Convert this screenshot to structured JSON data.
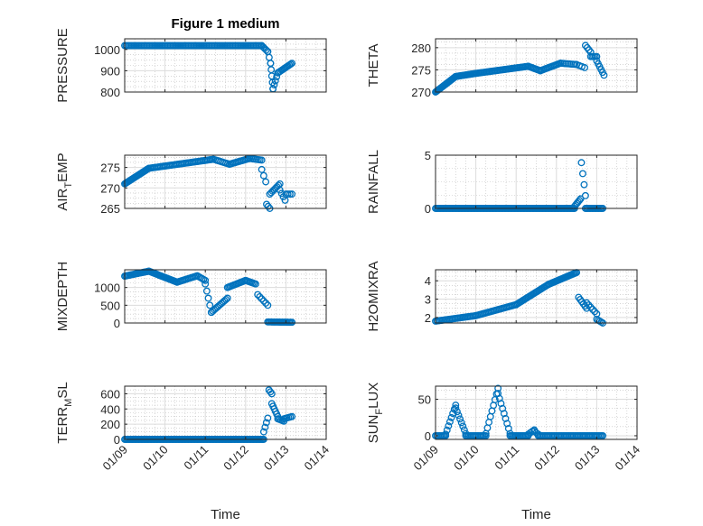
{
  "colors": {
    "marker": "#0072bd",
    "axis": "#262626"
  },
  "chart_data": [
    {
      "type": "scatter",
      "title": "Figure 1 medium",
      "ylabel": "PRESSURE",
      "ylim": [
        800,
        1050
      ],
      "yticks": [
        800,
        900,
        1000
      ],
      "xlim": [
        0,
        5
      ],
      "xticks": [
        0,
        1,
        2,
        3,
        4,
        5
      ],
      "xticklabels": [
        "01/09",
        "01/10",
        "01/11",
        "01/12",
        "01/13",
        "01/14"
      ],
      "show_xticklabels": false,
      "xlabel": "",
      "series": [
        {
          "segments": [
            {
              "x0": 0.0,
              "x1": 3.4,
              "y0": 1018,
              "y1": 1018,
              "n": 100
            },
            {
              "x0": 3.4,
              "x1": 3.55,
              "y0": 1018,
              "y1": 990,
              "n": 5
            },
            {
              "x0": 3.55,
              "x1": 3.62,
              "y0": 990,
              "y1": 935,
              "n": 3
            },
            {
              "x0": 3.62,
              "x1": 3.68,
              "y0": 935,
              "y1": 815,
              "n": 5
            },
            {
              "x0": 3.68,
              "x1": 3.8,
              "y0": 815,
              "y1": 890,
              "n": 5
            },
            {
              "x0": 3.8,
              "x1": 4.15,
              "y0": 890,
              "y1": 935,
              "n": 12
            }
          ]
        }
      ]
    },
    {
      "type": "scatter",
      "title": "",
      "ylabel": "THETA",
      "ylim": [
        270,
        282
      ],
      "yticks": [
        270,
        275,
        280
      ],
      "xlim": [
        0,
        5
      ],
      "xticks": [
        0,
        1,
        2,
        3,
        4,
        5
      ],
      "xticklabels": [
        "01/09",
        "01/10",
        "01/11",
        "01/12",
        "01/13",
        "01/14"
      ],
      "show_xticklabels": false,
      "xlabel": "",
      "series": [
        {
          "segments": [
            {
              "x0": 0.0,
              "x1": 0.5,
              "y0": 270,
              "y1": 273.5,
              "n": 25
            },
            {
              "x0": 0.5,
              "x1": 1.0,
              "y0": 273.5,
              "y1": 274.2,
              "n": 20
            },
            {
              "x0": 1.0,
              "x1": 2.3,
              "y0": 274.2,
              "y1": 275.8,
              "n": 40
            },
            {
              "x0": 2.3,
              "x1": 2.6,
              "y0": 275.8,
              "y1": 274.8,
              "n": 10
            },
            {
              "x0": 2.6,
              "x1": 3.1,
              "y0": 274.8,
              "y1": 276.5,
              "n": 15
            },
            {
              "x0": 3.1,
              "x1": 3.5,
              "y0": 276.5,
              "y1": 276.2,
              "n": 10
            },
            {
              "x0": 3.5,
              "x1": 3.7,
              "y0": 276.2,
              "y1": 275.5,
              "n": 4
            },
            {
              "x0": 3.72,
              "x1": 3.85,
              "y0": 280.5,
              "y1": 279,
              "n": 4
            },
            {
              "x0": 3.85,
              "x1": 4.0,
              "y0": 278,
              "y1": 278,
              "n": 5
            },
            {
              "x0": 4.0,
              "x1": 4.18,
              "y0": 277,
              "y1": 273.8,
              "n": 6
            }
          ]
        }
      ]
    },
    {
      "type": "scatter",
      "title": "",
      "ylabel": "AIR_TEMP",
      "ylim": [
        265,
        278
      ],
      "yticks": [
        265,
        270,
        275
      ],
      "xlim": [
        0,
        5
      ],
      "xticks": [
        0,
        1,
        2,
        3,
        4,
        5
      ],
      "xticklabels": [
        "01/09",
        "01/10",
        "01/11",
        "01/12",
        "01/13",
        "01/14"
      ],
      "show_xticklabels": false,
      "xlabel": "",
      "series": [
        {
          "segments": [
            {
              "x0": 0.0,
              "x1": 0.6,
              "y0": 271,
              "y1": 274.8,
              "n": 25
            },
            {
              "x0": 0.6,
              "x1": 2.2,
              "y0": 274.8,
              "y1": 277,
              "n": 45
            },
            {
              "x0": 2.2,
              "x1": 2.6,
              "y0": 277,
              "y1": 275.8,
              "n": 10
            },
            {
              "x0": 2.6,
              "x1": 3.1,
              "y0": 275.8,
              "y1": 277.2,
              "n": 15
            },
            {
              "x0": 3.1,
              "x1": 3.4,
              "y0": 277.2,
              "y1": 276.8,
              "n": 8
            },
            {
              "x0": 3.4,
              "x1": 3.5,
              "y0": 274.5,
              "y1": 271.5,
              "n": 3
            },
            {
              "x0": 3.52,
              "x1": 3.6,
              "y0": 266,
              "y1": 265,
              "n": 3
            },
            {
              "x0": 3.6,
              "x1": 3.85,
              "y0": 268.5,
              "y1": 271,
              "n": 8
            },
            {
              "x0": 3.85,
              "x1": 3.98,
              "y0": 269.5,
              "y1": 267,
              "n": 4
            },
            {
              "x0": 4.0,
              "x1": 4.15,
              "y0": 268.5,
              "y1": 268.5,
              "n": 4
            }
          ]
        }
      ]
    },
    {
      "type": "scatter",
      "title": "",
      "ylabel": "RAINFALL",
      "ylim": [
        0,
        5
      ],
      "yticks": [
        0,
        5
      ],
      "xlim": [
        0,
        5
      ],
      "xticks": [
        0,
        1,
        2,
        3,
        4,
        5
      ],
      "xticklabels": [
        "01/09",
        "01/10",
        "01/11",
        "01/12",
        "01/13",
        "01/14"
      ],
      "show_xticklabels": false,
      "xlabel": "",
      "series": [
        {
          "segments": [
            {
              "x0": 0.0,
              "x1": 3.45,
              "y0": 0,
              "y1": 0,
              "n": 110
            },
            {
              "x0": 3.45,
              "x1": 3.6,
              "y0": 0.2,
              "y1": 0.9,
              "n": 6
            },
            {
              "x0": 3.62,
              "x1": 3.72,
              "y0": 4.3,
              "y1": 1.2,
              "n": 4
            },
            {
              "x0": 3.72,
              "x1": 4.15,
              "y0": 0,
              "y1": 0,
              "n": 14
            }
          ]
        }
      ]
    },
    {
      "type": "scatter",
      "title": "",
      "ylabel": "MIXDEPTH",
      "ylim": [
        0,
        1500
      ],
      "yticks": [
        0,
        500,
        1000
      ],
      "xlim": [
        0,
        5
      ],
      "xticks": [
        0,
        1,
        2,
        3,
        4,
        5
      ],
      "xticklabels": [
        "01/09",
        "01/10",
        "01/11",
        "01/12",
        "01/13",
        "01/14"
      ],
      "show_xticklabels": false,
      "xlabel": "",
      "series": [
        {
          "segments": [
            {
              "x0": 0.0,
              "x1": 0.6,
              "y0": 1320,
              "y1": 1460,
              "n": 20
            },
            {
              "x0": 0.6,
              "x1": 1.3,
              "y0": 1460,
              "y1": 1150,
              "n": 25
            },
            {
              "x0": 1.3,
              "x1": 1.8,
              "y0": 1150,
              "y1": 1330,
              "n": 15
            },
            {
              "x0": 1.8,
              "x1": 2.0,
              "y0": 1330,
              "y1": 1200,
              "n": 6
            },
            {
              "x0": 2.0,
              "x1": 2.15,
              "y0": 1100,
              "y1": 300,
              "n": 5
            },
            {
              "x0": 2.15,
              "x1": 2.55,
              "y0": 300,
              "y1": 700,
              "n": 12
            },
            {
              "x0": 2.55,
              "x1": 3.0,
              "y0": 1000,
              "y1": 1200,
              "n": 15
            },
            {
              "x0": 3.0,
              "x1": 3.25,
              "y0": 1200,
              "y1": 1100,
              "n": 8
            },
            {
              "x0": 3.3,
              "x1": 3.55,
              "y0": 800,
              "y1": 500,
              "n": 6
            },
            {
              "x0": 3.55,
              "x1": 4.15,
              "y0": 30,
              "y1": 20,
              "n": 20
            }
          ]
        }
      ]
    },
    {
      "type": "scatter",
      "title": "",
      "ylabel": "H2OMIXRA",
      "ylim": [
        1.7,
        4.6
      ],
      "yticks": [
        2,
        3,
        4
      ],
      "xlim": [
        0,
        5
      ],
      "xticks": [
        0,
        1,
        2,
        3,
        4,
        5
      ],
      "xticklabels": [
        "01/09",
        "01/10",
        "01/11",
        "01/12",
        "01/13",
        "01/14"
      ],
      "show_xticklabels": false,
      "xlabel": "",
      "series": [
        {
          "segments": [
            {
              "x0": 0.0,
              "x1": 1.0,
              "y0": 1.8,
              "y1": 2.1,
              "n": 30
            },
            {
              "x0": 1.0,
              "x1": 2.0,
              "y0": 2.1,
              "y1": 2.7,
              "n": 30
            },
            {
              "x0": 2.0,
              "x1": 2.8,
              "y0": 2.7,
              "y1": 3.8,
              "n": 25
            },
            {
              "x0": 2.8,
              "x1": 3.5,
              "y0": 3.8,
              "y1": 4.45,
              "n": 25
            },
            {
              "x0": 3.55,
              "x1": 3.75,
              "y0": 3.1,
              "y1": 2.5,
              "n": 6
            },
            {
              "x0": 3.75,
              "x1": 4.0,
              "y0": 2.8,
              "y1": 2.2,
              "n": 6
            },
            {
              "x0": 4.0,
              "x1": 4.15,
              "y0": 1.9,
              "y1": 1.7,
              "n": 5
            }
          ]
        }
      ]
    },
    {
      "type": "scatter",
      "title": "",
      "ylabel": "TERR_MSL",
      "ylim": [
        0,
        700
      ],
      "yticks": [
        0,
        200,
        400,
        600
      ],
      "xlim": [
        0,
        5
      ],
      "xticks": [
        0,
        1,
        2,
        3,
        4,
        5
      ],
      "xticklabels": [
        "01/09",
        "01/10",
        "01/11",
        "01/12",
        "01/13",
        "01/14"
      ],
      "show_xticklabels": true,
      "xlabel": "Time",
      "series": [
        {
          "segments": [
            {
              "x0": 0.0,
              "x1": 3.45,
              "y0": 0,
              "y1": 0,
              "n": 110
            },
            {
              "x0": 3.45,
              "x1": 3.55,
              "y0": 100,
              "y1": 280,
              "n": 4
            },
            {
              "x0": 3.58,
              "x1": 3.65,
              "y0": 650,
              "y1": 600,
              "n": 3
            },
            {
              "x0": 3.65,
              "x1": 3.8,
              "y0": 470,
              "y1": 300,
              "n": 6
            },
            {
              "x0": 3.8,
              "x1": 3.95,
              "y0": 270,
              "y1": 240,
              "n": 5
            },
            {
              "x0": 3.95,
              "x1": 4.15,
              "y0": 270,
              "y1": 300,
              "n": 6
            }
          ]
        }
      ]
    },
    {
      "type": "scatter",
      "title": "",
      "ylabel": "SUN_FLUX",
      "ylim": [
        -5,
        68
      ],
      "yticks": [
        0,
        50
      ],
      "xlim": [
        0,
        5
      ],
      "xticks": [
        0,
        1,
        2,
        3,
        4,
        5
      ],
      "xticklabels": [
        "01/09",
        "01/10",
        "01/11",
        "01/12",
        "01/13",
        "01/14"
      ],
      "show_xticklabels": true,
      "xlabel": "Time",
      "series": [
        {
          "segments": [
            {
              "x0": 0.0,
              "x1": 0.25,
              "y0": 0,
              "y1": 0,
              "n": 8
            },
            {
              "x0": 0.25,
              "x1": 0.5,
              "y0": 2,
              "y1": 42,
              "n": 8
            },
            {
              "x0": 0.5,
              "x1": 0.75,
              "y0": 38,
              "y1": 3,
              "n": 8
            },
            {
              "x0": 0.75,
              "x1": 1.25,
              "y0": 0,
              "y1": 0,
              "n": 15
            },
            {
              "x0": 1.25,
              "x1": 1.55,
              "y0": 3,
              "y1": 65,
              "n": 9
            },
            {
              "x0": 1.55,
              "x1": 1.85,
              "y0": 58,
              "y1": 3,
              "n": 9
            },
            {
              "x0": 1.85,
              "x1": 2.3,
              "y0": 0,
              "y1": 0,
              "n": 14
            },
            {
              "x0": 2.3,
              "x1": 2.45,
              "y0": 2,
              "y1": 8,
              "n": 4
            },
            {
              "x0": 2.45,
              "x1": 2.55,
              "y0": 6,
              "y1": 2,
              "n": 3
            },
            {
              "x0": 2.55,
              "x1": 4.15,
              "y0": 0,
              "y1": 0,
              "n": 45
            }
          ]
        }
      ]
    }
  ]
}
